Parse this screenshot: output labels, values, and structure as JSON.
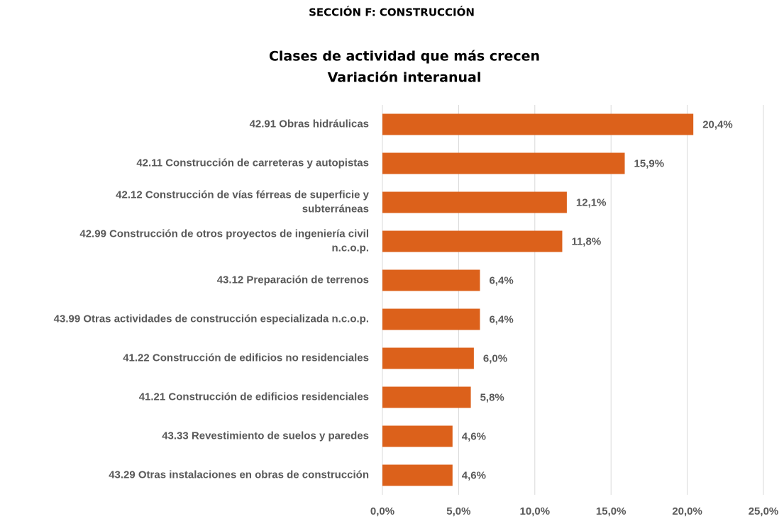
{
  "chart_data": {
    "type": "bar",
    "orientation": "horizontal",
    "header": "SECCIÓN F: CONSTRUCCIÓN",
    "title": "Clases de actividad que más crecen",
    "subtitle": "Variación interanual",
    "categories": [
      "42.91 Obras hidráulicas",
      "42.11 Construcción de carreteras y autopistas",
      "42.12 Construcción de vías férreas de superficie y subterráneas",
      "42.99 Construcción de otros proyectos de ingeniería civil n.c.o.p.",
      "43.12 Preparación de terrenos",
      "43.99 Otras actividades de construcción especializada n.c.o.p.",
      "41.22 Construcción de edificios no residenciales",
      "41.21 Construcción de edificios residenciales",
      "43.33 Revestimiento de suelos y paredes",
      "43.29 Otras instalaciones en obras de construcción"
    ],
    "values": [
      20.4,
      15.9,
      12.1,
      11.8,
      6.4,
      6.4,
      6.0,
      5.8,
      4.6,
      4.6
    ],
    "value_labels": [
      "20,4%",
      "15,9%",
      "12,1%",
      "11,8%",
      "6,4%",
      "6,4%",
      "6,0%",
      "5,8%",
      "4,6%",
      "4,6%"
    ],
    "color": "#dc611b",
    "xlim": [
      0,
      25
    ],
    "xticks": [
      {
        "value": 0,
        "label": "0,0%"
      },
      {
        "value": 5,
        "label": "5,0%"
      },
      {
        "value": 10,
        "label": "10,0%"
      },
      {
        "value": 15,
        "label": "15,0%"
      },
      {
        "value": 20,
        "label": "20,0%"
      },
      {
        "value": 25,
        "label": "25,0%"
      }
    ],
    "grid": true
  }
}
